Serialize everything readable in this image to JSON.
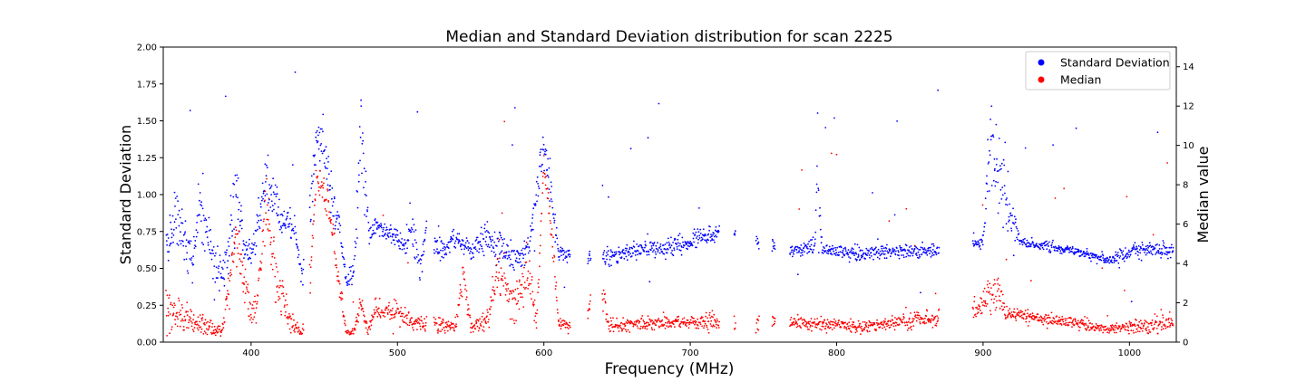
{
  "chart_data": {
    "type": "scatter",
    "title": "Median and Standard Deviation distribution for scan 2225",
    "xlabel": "Frequency (MHz)",
    "ylabel_left": "Standard Deviation",
    "ylabel_right": "Median value",
    "xlim": [
      340,
      1032
    ],
    "ylim_left": [
      0,
      2.0
    ],
    "ylim_right": [
      0,
      15
    ],
    "x_ticks": [
      400,
      500,
      600,
      700,
      800,
      900,
      1000
    ],
    "y_left_ticks": [
      "0.00",
      "0.25",
      "0.50",
      "0.75",
      "1.00",
      "1.25",
      "1.50",
      "1.75",
      "2.00"
    ],
    "y_right_ticks": [
      "0",
      "2",
      "4",
      "6",
      "8",
      "10",
      "12",
      "14"
    ],
    "grid": false,
    "legend_position": "top-right",
    "series": [
      {
        "name": "Standard Deviation",
        "axis": "left",
        "color": "#0000ff",
        "profile": [
          [
            342,
            0.62,
            0.15
          ],
          [
            350,
            0.85,
            0.2
          ],
          [
            355,
            0.7,
            0.15
          ],
          [
            360,
            0.55,
            0.12
          ],
          [
            365,
            0.9,
            0.25
          ],
          [
            370,
            0.7,
            0.2
          ],
          [
            380,
            0.45,
            0.1
          ],
          [
            385,
            0.7,
            0.2
          ],
          [
            390,
            1.0,
            0.25
          ],
          [
            395,
            0.65,
            0.1
          ],
          [
            400,
            0.6,
            0.1
          ],
          [
            405,
            0.85,
            0.2
          ],
          [
            410,
            1.1,
            0.25
          ],
          [
            415,
            1.0,
            0.2
          ],
          [
            420,
            0.78,
            0.1
          ],
          [
            425,
            0.8,
            0.1
          ],
          [
            430,
            0.75,
            0.1
          ],
          [
            435,
            0.45,
            0.08
          ],
          [
            440,
            0.9,
            0.15
          ],
          [
            445,
            1.4,
            0.12
          ],
          [
            450,
            1.3,
            0.15
          ],
          [
            455,
            1.0,
            0.15
          ],
          [
            460,
            0.8,
            0.15
          ],
          [
            465,
            0.42,
            0.06
          ],
          [
            470,
            0.45,
            0.08
          ],
          [
            475,
            1.4,
            0.35
          ],
          [
            480,
            0.8,
            0.1
          ],
          [
            490,
            0.75,
            0.08
          ],
          [
            500,
            0.72,
            0.06
          ],
          [
            505,
            0.65,
            0.08
          ],
          [
            510,
            0.8,
            0.15
          ],
          [
            515,
            0.5,
            0.1
          ],
          [
            520,
            0.75,
            0.15
          ],
          [
            530,
            0.62,
            0.1
          ],
          [
            540,
            0.7,
            0.1
          ],
          [
            550,
            0.62,
            0.08
          ],
          [
            560,
            0.7,
            0.08
          ],
          [
            570,
            0.65,
            0.1
          ],
          [
            580,
            0.55,
            0.08
          ],
          [
            590,
            0.65,
            0.08
          ],
          [
            600,
            1.35,
            0.15
          ],
          [
            605,
            1.0,
            0.1
          ],
          [
            610,
            0.6,
            0.05
          ],
          [
            618,
            0.58,
            0.05
          ],
          [
            645,
            0.58,
            0.06
          ],
          [
            660,
            0.62,
            0.06
          ],
          [
            680,
            0.63,
            0.06
          ],
          [
            700,
            0.68,
            0.07
          ],
          [
            718,
            0.75,
            0.06
          ],
          [
            770,
            0.62,
            0.04
          ],
          [
            785,
            0.65,
            0.06
          ],
          [
            787,
            1.1,
            0.15
          ],
          [
            790,
            0.63,
            0.04
          ],
          [
            810,
            0.6,
            0.05
          ],
          [
            830,
            0.6,
            0.05
          ],
          [
            850,
            0.62,
            0.05
          ],
          [
            868,
            0.62,
            0.05
          ],
          [
            895,
            0.67,
            0.04
          ],
          [
            900,
            0.68,
            0.04
          ],
          [
            905,
            1.4,
            0.3
          ],
          [
            910,
            1.2,
            0.3
          ],
          [
            915,
            1.0,
            0.25
          ],
          [
            920,
            0.85,
            0.2
          ],
          [
            925,
            0.68,
            0.03
          ],
          [
            950,
            0.64,
            0.03
          ],
          [
            970,
            0.6,
            0.03
          ],
          [
            985,
            0.55,
            0.04
          ],
          [
            1003,
            0.62,
            0.05
          ],
          [
            1030,
            0.63,
            0.05
          ]
        ]
      },
      {
        "name": "Median",
        "axis": "right",
        "color": "#ff0000",
        "profile": [
          [
            342,
            2.0,
            1.2
          ],
          [
            350,
            1.5,
            1.0
          ],
          [
            360,
            1.0,
            0.6
          ],
          [
            370,
            0.7,
            0.5
          ],
          [
            380,
            0.5,
            0.3
          ],
          [
            385,
            3.0,
            1.2
          ],
          [
            390,
            5.5,
            1.5
          ],
          [
            395,
            3.0,
            1.2
          ],
          [
            400,
            1.5,
            0.8
          ],
          [
            405,
            2.5,
            1.0
          ],
          [
            410,
            7.0,
            1.5
          ],
          [
            415,
            4.0,
            1.5
          ],
          [
            420,
            2.5,
            1.0
          ],
          [
            425,
            1.5,
            0.8
          ],
          [
            430,
            0.8,
            0.4
          ],
          [
            435,
            0.5,
            0.2
          ],
          [
            440,
            3.0,
            1.0
          ],
          [
            445,
            8.5,
            0.8
          ],
          [
            450,
            7.5,
            1.0
          ],
          [
            455,
            6.0,
            0.8
          ],
          [
            460,
            3.0,
            1.0
          ],
          [
            465,
            0.5,
            0.15
          ],
          [
            470,
            0.5,
            0.15
          ],
          [
            475,
            2.0,
            0.5
          ],
          [
            480,
            0.6,
            0.3
          ],
          [
            485,
            1.8,
            0.5
          ],
          [
            490,
            1.5,
            0.5
          ],
          [
            500,
            1.5,
            0.5
          ],
          [
            510,
            1.0,
            0.4
          ],
          [
            520,
            1.0,
            0.5
          ],
          [
            530,
            0.9,
            0.4
          ],
          [
            540,
            0.8,
            0.3
          ],
          [
            545,
            3.5,
            1.0
          ],
          [
            550,
            0.8,
            0.3
          ],
          [
            560,
            1.0,
            0.5
          ],
          [
            570,
            3.5,
            1.5
          ],
          [
            580,
            2.0,
            1.0
          ],
          [
            590,
            3.5,
            1.2
          ],
          [
            595,
            1.0,
            0.4
          ],
          [
            600,
            9.0,
            1.0
          ],
          [
            605,
            6.0,
            1.0
          ],
          [
            610,
            1.0,
            0.3
          ],
          [
            618,
            0.8,
            0.2
          ],
          [
            640,
            2.5,
            1.0
          ],
          [
            645,
            0.8,
            0.3
          ],
          [
            660,
            0.9,
            0.3
          ],
          [
            680,
            1.0,
            0.4
          ],
          [
            700,
            1.0,
            0.4
          ],
          [
            718,
            1.0,
            0.4
          ],
          [
            770,
            1.0,
            0.3
          ],
          [
            790,
            0.9,
            0.3
          ],
          [
            810,
            0.8,
            0.3
          ],
          [
            830,
            0.9,
            0.3
          ],
          [
            850,
            1.1,
            0.4
          ],
          [
            868,
            1.2,
            0.4
          ],
          [
            895,
            1.5,
            0.5
          ],
          [
            905,
            2.5,
            1.0
          ],
          [
            910,
            2.8,
            1.2
          ],
          [
            915,
            1.5,
            0.4
          ],
          [
            930,
            1.3,
            0.3
          ],
          [
            950,
            1.1,
            0.3
          ],
          [
            970,
            0.9,
            0.3
          ],
          [
            985,
            0.6,
            0.2
          ],
          [
            1003,
            0.8,
            0.4
          ],
          [
            1030,
            1.0,
            0.5
          ]
        ]
      }
    ]
  }
}
